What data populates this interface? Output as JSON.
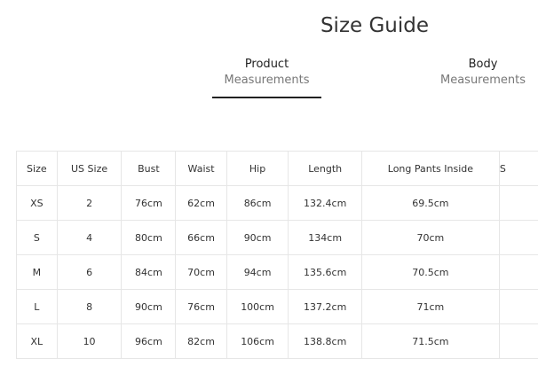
{
  "title": "Size Guide",
  "tabs": [
    {
      "line1": "Product",
      "line2": "Measurements",
      "active": true
    },
    {
      "line1": "Body",
      "line2": "Measurements",
      "active": false
    }
  ],
  "table": {
    "headers": [
      "Size",
      "US Size",
      "Bust",
      "Waist",
      "Hip",
      "Length",
      "Long Pants Inside",
      "S"
    ],
    "rows": [
      [
        "XS",
        "2",
        "76cm",
        "62cm",
        "86cm",
        "132.4cm",
        "69.5cm",
        ""
      ],
      [
        "S",
        "4",
        "80cm",
        "66cm",
        "90cm",
        "134cm",
        "70cm",
        ""
      ],
      [
        "M",
        "6",
        "84cm",
        "70cm",
        "94cm",
        "135.6cm",
        "70.5cm",
        ""
      ],
      [
        "L",
        "8",
        "90cm",
        "76cm",
        "100cm",
        "137.2cm",
        "71cm",
        ""
      ],
      [
        "XL",
        "10",
        "96cm",
        "82cm",
        "106cm",
        "138.8cm",
        "71.5cm",
        ""
      ]
    ]
  }
}
